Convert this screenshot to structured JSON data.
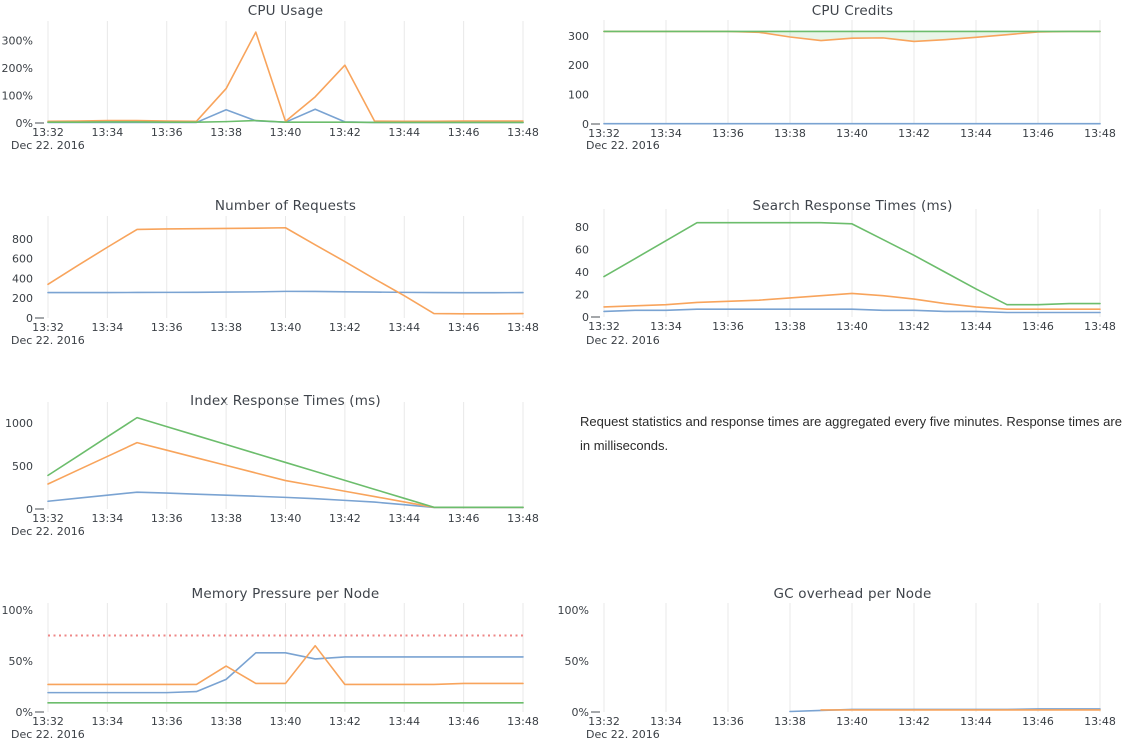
{
  "page": {
    "background": "#ffffff"
  },
  "colors": {
    "blue": "#7aa3d2",
    "orange": "#f8a45c",
    "green": "#6cbd6c",
    "threshold_red": "#ee8787",
    "gridline": "#e8e8e8",
    "axis_text": "#3a3f45",
    "title_text": "#3f444b"
  },
  "note": {
    "text": "Request statistics and response times are aggregated every five minutes. Response times are in milliseconds."
  },
  "x_axis": {
    "range": [
      0,
      16
    ],
    "tick_values": [
      0,
      2,
      4,
      6,
      8,
      10,
      12,
      14,
      16
    ],
    "tick_labels": [
      "13:32",
      "13:34",
      "13:36",
      "13:38",
      "13:40",
      "13:42",
      "13:44",
      "13:46",
      "13:48"
    ],
    "date_label": "Dec 22. 2016",
    "point_interval_minutes": 1
  },
  "chart_data": [
    {
      "id": "cpu-usage",
      "type": "line",
      "title": "CPU Usage",
      "unit": "%",
      "y_range": [
        0,
        345
      ],
      "y_ticks": [
        {
          "value": 0,
          "label": "0%"
        },
        {
          "value": 100,
          "label": "100%"
        },
        {
          "value": 200,
          "label": "200%"
        },
        {
          "value": 300,
          "label": "300%"
        }
      ],
      "series": [
        {
          "name": "blue",
          "color": "#7aa3d2",
          "values": [
            2,
            2,
            2,
            2,
            2,
            2,
            48,
            8,
            3,
            50,
            4,
            2,
            2,
            2,
            2,
            2,
            2
          ]
        },
        {
          "name": "orange",
          "color": "#f8a45c",
          "values": [
            6,
            7,
            9,
            9,
            7,
            6,
            125,
            330,
            6,
            95,
            210,
            7,
            6,
            6,
            7,
            7,
            7
          ]
        },
        {
          "name": "green",
          "color": "#6cbd6c",
          "values": [
            3,
            3,
            4,
            4,
            3,
            3,
            5,
            9,
            3,
            3,
            3,
            2,
            2,
            2,
            2,
            2,
            2
          ]
        }
      ]
    },
    {
      "id": "cpu-credits",
      "type": "line",
      "title": "CPU Credits",
      "unit": "",
      "y_range": [
        0,
        330
      ],
      "y_ticks": [
        {
          "value": 0,
          "label": "0"
        },
        {
          "value": 100,
          "label": "100"
        },
        {
          "value": 200,
          "label": "200"
        },
        {
          "value": 300,
          "label": "300"
        }
      ],
      "fill_between": {
        "upper": "green",
        "lower": "orange",
        "color": "rgba(120,190,120,0.16)"
      },
      "series": [
        {
          "name": "blue",
          "color": "#7aa3d2",
          "values": [
            1,
            1,
            1,
            1,
            1,
            1,
            1,
            1,
            1,
            1,
            1,
            1,
            1,
            1,
            1,
            1,
            1
          ]
        },
        {
          "name": "orange",
          "color": "#f8a45c",
          "values": [
            315,
            315,
            315,
            315,
            315,
            312,
            296,
            284,
            292,
            293,
            281,
            287,
            295,
            304,
            313,
            315,
            315
          ]
        },
        {
          "name": "green",
          "color": "#6cbd6c",
          "values": [
            315,
            315,
            315,
            315,
            315,
            315,
            315,
            315,
            315,
            315,
            315,
            315,
            315,
            315,
            315,
            315,
            315
          ]
        }
      ]
    },
    {
      "id": "requests",
      "type": "line",
      "title": "Number of Requests",
      "unit": "",
      "y_range": [
        0,
        960
      ],
      "y_ticks": [
        {
          "value": 0,
          "label": "0"
        },
        {
          "value": 200,
          "label": "200"
        },
        {
          "value": 400,
          "label": "400"
        },
        {
          "value": 600,
          "label": "600"
        },
        {
          "value": 800,
          "label": "800"
        }
      ],
      "series": [
        {
          "name": "blue",
          "color": "#7aa3d2",
          "values": [
            257,
            257,
            257,
            258,
            259,
            260,
            262,
            264,
            269,
            268,
            265,
            262,
            259,
            257,
            256,
            256,
            257
          ]
        },
        {
          "name": "orange",
          "color": "#f8a45c",
          "values": [
            340,
            530,
            715,
            895,
            900,
            903,
            905,
            908,
            912,
            740,
            570,
            395,
            225,
            45,
            42,
            42,
            45
          ]
        }
      ]
    },
    {
      "id": "search",
      "type": "line",
      "title": "Search Response Times (ms)",
      "unit": "ms",
      "y_range": [
        0,
        90
      ],
      "y_ticks": [
        {
          "value": 0,
          "label": "0"
        },
        {
          "value": 20,
          "label": "20"
        },
        {
          "value": 40,
          "label": "40"
        },
        {
          "value": 60,
          "label": "60"
        },
        {
          "value": 80,
          "label": "80"
        }
      ],
      "series": [
        {
          "name": "blue",
          "color": "#7aa3d2",
          "values": [
            5,
            6,
            6,
            7,
            7,
            7,
            7,
            7,
            7,
            6,
            6,
            5,
            5,
            4,
            4,
            4,
            4
          ]
        },
        {
          "name": "orange",
          "color": "#f8a45c",
          "values": [
            9,
            10,
            11,
            13,
            14,
            15,
            17,
            19,
            21,
            19,
            16,
            12,
            9,
            7,
            7,
            7,
            7
          ]
        },
        {
          "name": "green",
          "color": "#6cbd6c",
          "values": [
            36,
            52,
            68,
            84,
            84,
            84,
            84,
            84,
            83,
            69,
            55,
            40,
            25,
            11,
            11,
            12,
            12
          ]
        }
      ]
    },
    {
      "id": "index",
      "type": "line",
      "title": "Index Response Times (ms)",
      "unit": "ms",
      "y_range": [
        0,
        1160
      ],
      "y_ticks": [
        {
          "value": 0,
          "label": "0"
        },
        {
          "value": 500,
          "label": "500"
        },
        {
          "value": 1000,
          "label": "1000"
        }
      ],
      "series": [
        {
          "name": "blue",
          "color": "#7aa3d2",
          "values": [
            90,
            125,
            160,
            195,
            185,
            172,
            160,
            148,
            135,
            120,
            100,
            80,
            50,
            18,
            18,
            18,
            18
          ]
        },
        {
          "name": "orange",
          "color": "#f8a45c",
          "values": [
            290,
            450,
            610,
            770,
            682,
            594,
            506,
            418,
            330,
            268,
            206,
            144,
            82,
            20,
            20,
            20,
            20
          ]
        },
        {
          "name": "green",
          "color": "#6cbd6c",
          "values": [
            390,
            613,
            837,
            1060,
            956,
            852,
            748,
            644,
            540,
            436,
            332,
            228,
            124,
            20,
            20,
            20,
            20
          ]
        }
      ]
    },
    {
      "id": "memory",
      "type": "line",
      "title": "Memory Pressure per Node",
      "unit": "%",
      "y_range": [
        0,
        100
      ],
      "y_ticks": [
        {
          "value": 0,
          "label": "0%"
        },
        {
          "value": 50,
          "label": "50%"
        },
        {
          "value": 100,
          "label": "100%"
        }
      ],
      "threshold": {
        "value": 75,
        "color": "#ee8787",
        "style": "dotted"
      },
      "series": [
        {
          "name": "blue",
          "color": "#7aa3d2",
          "values": [
            19,
            19,
            19,
            19,
            19,
            20,
            32,
            58,
            58,
            52,
            54,
            54,
            54,
            54,
            54,
            54,
            54
          ]
        },
        {
          "name": "orange",
          "color": "#f8a45c",
          "values": [
            27,
            27,
            27,
            27,
            27,
            27,
            45,
            28,
            28,
            65,
            27,
            27,
            27,
            27,
            28,
            28,
            28
          ]
        },
        {
          "name": "green",
          "color": "#6cbd6c",
          "values": [
            9,
            9,
            9,
            9,
            9,
            9,
            9,
            9,
            9,
            9,
            9,
            9,
            9,
            9,
            9,
            9,
            9
          ]
        }
      ]
    },
    {
      "id": "gc",
      "type": "line",
      "title": "GC overhead per Node",
      "unit": "%",
      "y_range": [
        0,
        100
      ],
      "y_ticks": [
        {
          "value": 0,
          "label": "0%"
        },
        {
          "value": 50,
          "label": "50%"
        },
        {
          "value": 100,
          "label": "100%"
        }
      ],
      "series": [
        {
          "name": "blue",
          "color": "#7aa3d2",
          "values": [
            null,
            null,
            null,
            null,
            null,
            null,
            0.5,
            1.5,
            2.5,
            2.5,
            2.5,
            2.5,
            2.5,
            2.5,
            3,
            3,
            3
          ]
        },
        {
          "name": "orange",
          "color": "#f8a45c",
          "values": [
            null,
            null,
            null,
            null,
            null,
            null,
            null,
            2,
            2,
            2,
            2,
            2,
            2,
            2,
            2,
            2,
            2
          ]
        }
      ]
    }
  ]
}
